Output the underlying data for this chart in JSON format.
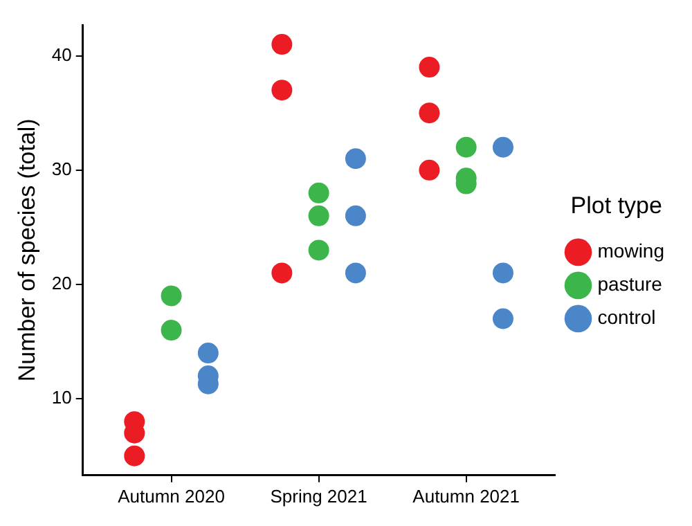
{
  "chart_data": {
    "type": "scatter",
    "ylabel": "Number of species (total)",
    "legend_title": "Plot type",
    "legend": "right",
    "marker": "circle",
    "grid": false,
    "categories": [
      "Autumn 2020",
      "Spring 2021",
      "Autumn 2021"
    ],
    "ylim": [
      3.3,
      42.7
    ],
    "yticks": [
      10,
      20,
      30,
      40
    ],
    "series": [
      {
        "name": "mowing",
        "color": "#ec1c24",
        "x": [
          "Autumn 2020",
          "Autumn 2020",
          "Autumn 2020",
          "Spring 2021",
          "Spring 2021",
          "Spring 2021",
          "Autumn 2021",
          "Autumn 2021",
          "Autumn 2021"
        ],
        "values": [
          8,
          7,
          5,
          41,
          37,
          21,
          39,
          35,
          30
        ]
      },
      {
        "name": "pasture",
        "color": "#3cb54a",
        "x": [
          "Autumn 2020",
          "Autumn 2020",
          "Spring 2021",
          "Spring 2021",
          "Spring 2021",
          "Autumn 2021",
          "Autumn 2021",
          "Autumn 2021"
        ],
        "values": [
          19,
          16,
          28,
          26,
          23,
          32,
          29.3,
          28.8
        ]
      },
      {
        "name": "control",
        "color": "#4a86c8",
        "x": [
          "Autumn 2020",
          "Autumn 2020",
          "Autumn 2020",
          "Spring 2021",
          "Spring 2021",
          "Spring 2021",
          "Autumn 2021",
          "Autumn 2021",
          "Autumn 2021"
        ],
        "values": [
          14,
          12,
          11.3,
          31,
          26,
          21,
          32,
          21,
          17
        ]
      }
    ]
  }
}
